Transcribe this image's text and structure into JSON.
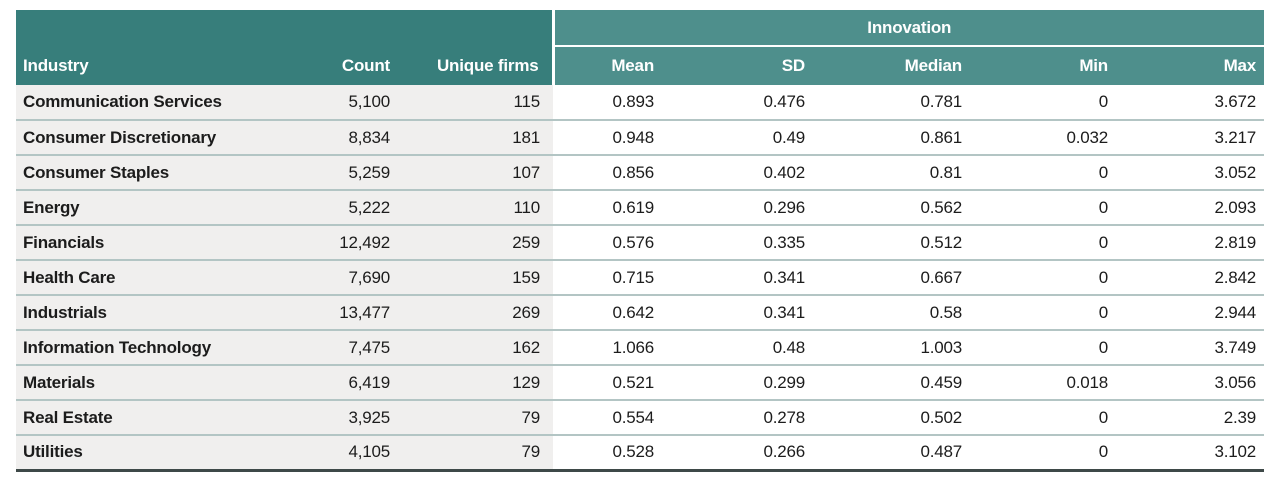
{
  "colors": {
    "dark_teal": "#377e7b",
    "light_teal": "#4e8f8c",
    "row_bg": "#f0efee",
    "separator": "#b3c5c4",
    "bottom_border": "#3e4948",
    "header_text": "#ffffff",
    "body_text": "#1c1c1c"
  },
  "chart_data": {
    "type": "table",
    "title": "",
    "group_header": "Innovation",
    "group_columns": [
      "Mean",
      "SD",
      "Median",
      "Min",
      "Max"
    ],
    "columns": [
      "Industry",
      "Count",
      "Unique firms",
      "Mean",
      "SD",
      "Median",
      "Min",
      "Max"
    ],
    "header": {
      "industry": "Industry",
      "count": "Count",
      "unique_firms": "Unique firms",
      "mean": "Mean",
      "sd": "SD",
      "median": "Median",
      "min": "Min",
      "max": "Max"
    },
    "rows": [
      {
        "industry": "Communication Services",
        "count": "5,100",
        "unique_firms": "115",
        "mean": "0.893",
        "sd": "0.476",
        "median": "0.781",
        "min": "0",
        "max": "3.672"
      },
      {
        "industry": "Consumer Discretionary",
        "count": "8,834",
        "unique_firms": "181",
        "mean": "0.948",
        "sd": "0.49",
        "median": "0.861",
        "min": "0.032",
        "max": "3.217"
      },
      {
        "industry": "Consumer Staples",
        "count": "5,259",
        "unique_firms": "107",
        "mean": "0.856",
        "sd": "0.402",
        "median": "0.81",
        "min": "0",
        "max": "3.052"
      },
      {
        "industry": "Energy",
        "count": "5,222",
        "unique_firms": "110",
        "mean": "0.619",
        "sd": "0.296",
        "median": "0.562",
        "min": "0",
        "max": "2.093"
      },
      {
        "industry": "Financials",
        "count": "12,492",
        "unique_firms": "259",
        "mean": "0.576",
        "sd": "0.335",
        "median": "0.512",
        "min": "0",
        "max": "2.819"
      },
      {
        "industry": "Health Care",
        "count": "7,690",
        "unique_firms": "159",
        "mean": "0.715",
        "sd": "0.341",
        "median": "0.667",
        "min": "0",
        "max": "2.842"
      },
      {
        "industry": "Industrials",
        "count": "13,477",
        "unique_firms": "269",
        "mean": "0.642",
        "sd": "0.341",
        "median": "0.58",
        "min": "0",
        "max": "2.944"
      },
      {
        "industry": "Information Technology",
        "count": "7,475",
        "unique_firms": "162",
        "mean": "1.066",
        "sd": "0.48",
        "median": "1.003",
        "min": "0",
        "max": "3.749"
      },
      {
        "industry": "Materials",
        "count": "6,419",
        "unique_firms": "129",
        "mean": "0.521",
        "sd": "0.299",
        "median": "0.459",
        "min": "0.018",
        "max": "3.056"
      },
      {
        "industry": "Real Estate",
        "count": "3,925",
        "unique_firms": "79",
        "mean": "0.554",
        "sd": "0.278",
        "median": "0.502",
        "min": "0",
        "max": "2.39"
      },
      {
        "industry": "Utilities",
        "count": "4,105",
        "unique_firms": "79",
        "mean": "0.528",
        "sd": "0.266",
        "median": "0.487",
        "min": "0",
        "max": "3.102"
      }
    ]
  }
}
